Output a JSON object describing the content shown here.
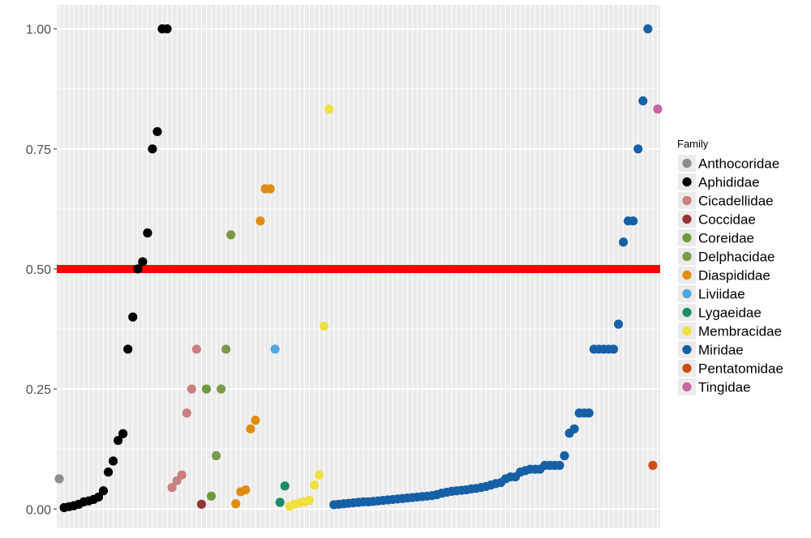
{
  "chart_data": {
    "type": "scatter",
    "title": "",
    "xlabel": "",
    "ylabel": "",
    "ylim": [
      -0.04,
      1.05
    ],
    "y_ticks": [
      0.0,
      0.25,
      0.5,
      0.75,
      1.0
    ],
    "y_tick_labels": [
      "0.00",
      "0.25",
      "0.50",
      "0.75",
      "1.00"
    ],
    "x_axis_labels_shown": false,
    "point_count": 123,
    "grid": true,
    "background_color": "#ebebeb",
    "grid_color": "#ffffff",
    "reference_line": {
      "y": 0.5,
      "color": "#ff0000",
      "style": "thick horizontal line"
    },
    "legend": {
      "title": "Family",
      "position": "right",
      "entries": [
        {
          "name": "Anthocoridae",
          "color": "#8c8c8c"
        },
        {
          "name": "Aphididae",
          "color": "#000000"
        },
        {
          "name": "Cicadellidae",
          "color": "#cc7f7f"
        },
        {
          "name": "Coccidae",
          "color": "#943434"
        },
        {
          "name": "Coreidae",
          "color": "#6e9a3a"
        },
        {
          "name": "Delphacidae",
          "color": "#7a9a48"
        },
        {
          "name": "Diaspididae",
          "color": "#e08c12"
        },
        {
          "name": "Liviidae",
          "color": "#4fa8dc"
        },
        {
          "name": "Lygaeidae",
          "color": "#1a8c6a"
        },
        {
          "name": "Membracidae",
          "color": "#f0e040"
        },
        {
          "name": "Miridae",
          "color": "#1660a6"
        },
        {
          "name": "Pentatomidae",
          "color": "#cc4d14"
        },
        {
          "name": "Tingidae",
          "color": "#c864a0"
        }
      ]
    },
    "series": [
      {
        "name": "Anthocoridae",
        "x": [
          1
        ],
        "values": [
          0.063
        ]
      },
      {
        "name": "Aphididae",
        "x": [
          2,
          3,
          4,
          5,
          6,
          7,
          8,
          9,
          10,
          11,
          12,
          13,
          14,
          15,
          16,
          17,
          18,
          19,
          20,
          21,
          22,
          23
        ],
        "values": [
          0.003,
          0.005,
          0.007,
          0.01,
          0.015,
          0.017,
          0.02,
          0.025,
          0.038,
          0.077,
          0.1,
          0.143,
          0.157,
          0.333,
          0.4,
          0.5,
          0.515,
          0.575,
          0.75,
          0.786,
          1.0,
          1.0
        ]
      },
      {
        "name": "Cicadellidae",
        "x": [
          24,
          25,
          26,
          27,
          28,
          29
        ],
        "values": [
          0.045,
          0.059,
          0.071,
          0.2,
          0.25,
          0.333
        ]
      },
      {
        "name": "Coccidae",
        "x": [
          30
        ],
        "values": [
          0.01
        ]
      },
      {
        "name": "Coreidae",
        "x": [
          31,
          32
        ],
        "values": [
          0.25,
          0.027
        ]
      },
      {
        "name": "Delphacidae",
        "x": [
          33,
          34,
          35,
          36
        ],
        "values": [
          0.111,
          0.25,
          0.333,
          0.571
        ]
      },
      {
        "name": "Diaspididae",
        "x": [
          37,
          38,
          39,
          40,
          41,
          42,
          43,
          44
        ],
        "values": [
          0.011,
          0.036,
          0.04,
          0.167,
          0.185,
          0.6,
          0.667,
          0.667
        ]
      },
      {
        "name": "Liviidae",
        "x": [
          45
        ],
        "values": [
          0.333
        ]
      },
      {
        "name": "Lygaeidae",
        "x": [
          46,
          47
        ],
        "values": [
          0.014,
          0.048
        ]
      },
      {
        "name": "Membracidae",
        "x": [
          48,
          49,
          50,
          51,
          52,
          53,
          54,
          55,
          56
        ],
        "values": [
          0.006,
          0.01,
          0.013,
          0.015,
          0.018,
          0.05,
          0.071,
          0.381,
          0.833
        ]
      },
      {
        "name": "Miridae",
        "x": [
          57,
          58,
          59,
          60,
          61,
          62,
          63,
          64,
          65,
          66,
          67,
          68,
          69,
          70,
          71,
          72,
          73,
          74,
          75,
          76,
          77,
          78,
          79,
          80,
          81,
          82,
          83,
          84,
          85,
          86,
          87,
          88,
          89,
          90,
          91,
          92,
          93,
          94,
          95,
          96,
          97,
          98,
          99,
          100,
          101,
          102,
          103,
          104,
          105,
          106,
          107,
          108,
          109,
          110,
          111,
          112,
          113,
          114,
          115,
          116,
          117,
          118,
          119,
          120,
          121
        ],
        "values": [
          0.009,
          0.01,
          0.011,
          0.012,
          0.013,
          0.014,
          0.015,
          0.015,
          0.016,
          0.017,
          0.018,
          0.019,
          0.02,
          0.021,
          0.022,
          0.023,
          0.024,
          0.025,
          0.026,
          0.027,
          0.028,
          0.03,
          0.033,
          0.035,
          0.037,
          0.038,
          0.039,
          0.04,
          0.042,
          0.043,
          0.045,
          0.047,
          0.05,
          0.053,
          0.055,
          0.063,
          0.067,
          0.067,
          0.077,
          0.08,
          0.083,
          0.083,
          0.083,
          0.091,
          0.091,
          0.091,
          0.091,
          0.111,
          0.158,
          0.167,
          0.2,
          0.2,
          0.2,
          0.333,
          0.333,
          0.333,
          0.333,
          0.333,
          0.385,
          0.556,
          0.6,
          0.6,
          0.75,
          0.85,
          1.0
        ]
      },
      {
        "name": "Pentatomidae",
        "x": [
          122
        ],
        "values": [
          0.091
        ]
      },
      {
        "name": "Tingidae",
        "x": [
          123
        ],
        "values": [
          0.833
        ]
      }
    ]
  }
}
